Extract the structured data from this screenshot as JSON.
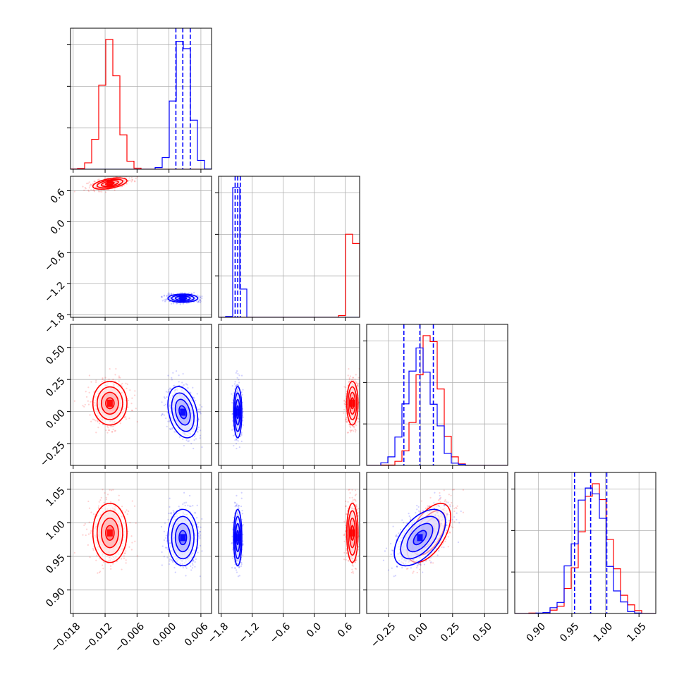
{
  "chart_data": {
    "type": "corner",
    "title": "",
    "parameters": [
      {
        "label": "",
        "range": [
          -0.0185,
          0.008
        ],
        "ticks": [
          -0.018,
          -0.012,
          -0.006,
          0.0,
          0.006
        ],
        "tick_labels": [
          "−0.018",
          "−0.012",
          "−0.006",
          "0.000",
          "0.006"
        ]
      },
      {
        "label": "",
        "range": [
          -1.85,
          0.88
        ],
        "ticks": [
          -1.8,
          -1.2,
          -0.6,
          0.0,
          0.6
        ],
        "tick_labels": [
          "−1.8",
          "−1.2",
          "−0.6",
          "0.0",
          "0.6"
        ]
      },
      {
        "label": "",
        "range": [
          -0.42,
          0.68
        ],
        "ticks": [
          -0.25,
          0.0,
          0.25,
          0.5
        ],
        "tick_labels": [
          "−0.25",
          "0.00",
          "0.25",
          "0.50"
        ]
      },
      {
        "label": "",
        "range": [
          0.865,
          1.075
        ],
        "ticks": [
          0.9,
          0.95,
          1.0,
          1.05
        ],
        "tick_labels": [
          "0.90",
          "0.95",
          "1.00",
          "1.05"
        ]
      }
    ],
    "series": [
      {
        "color": "#ff0000",
        "mean": [
          -0.0111,
          0.74,
          0.065,
          0.985
        ],
        "sd": [
          0.0016,
          0.055,
          0.085,
          0.022
        ],
        "corr": [
          [
            1.0,
            0.5,
            0.0,
            0.0
          ],
          [
            0.5,
            1.0,
            0.0,
            0.0
          ],
          [
            0.0,
            0.0,
            1.0,
            0.55
          ],
          [
            0.0,
            0.0,
            0.55,
            1.0
          ]
        ],
        "show_quantiles": false
      },
      {
        "color": "#0000ff",
        "mean": [
          0.0026,
          -1.48,
          -0.005,
          0.978
        ],
        "sd": [
          0.0014,
          0.04,
          0.1,
          0.021
        ],
        "corr": [
          [
            1.0,
            0.0,
            -0.3,
            0.0
          ],
          [
            0.0,
            1.0,
            0.0,
            0.0
          ],
          [
            -0.3,
            0.0,
            1.0,
            0.55
          ],
          [
            0.0,
            0.0,
            0.55,
            1.0
          ]
        ],
        "show_quantiles": true,
        "quantiles": [
          [
            0.0013,
            0.0026,
            0.004
          ],
          [
            -1.53,
            -1.48,
            -1.43
          ],
          [
            -0.13,
            -0.005,
            0.1
          ],
          [
            0.954,
            0.978,
            1.002
          ]
        ]
      }
    ],
    "grid": true,
    "legend": "none"
  }
}
